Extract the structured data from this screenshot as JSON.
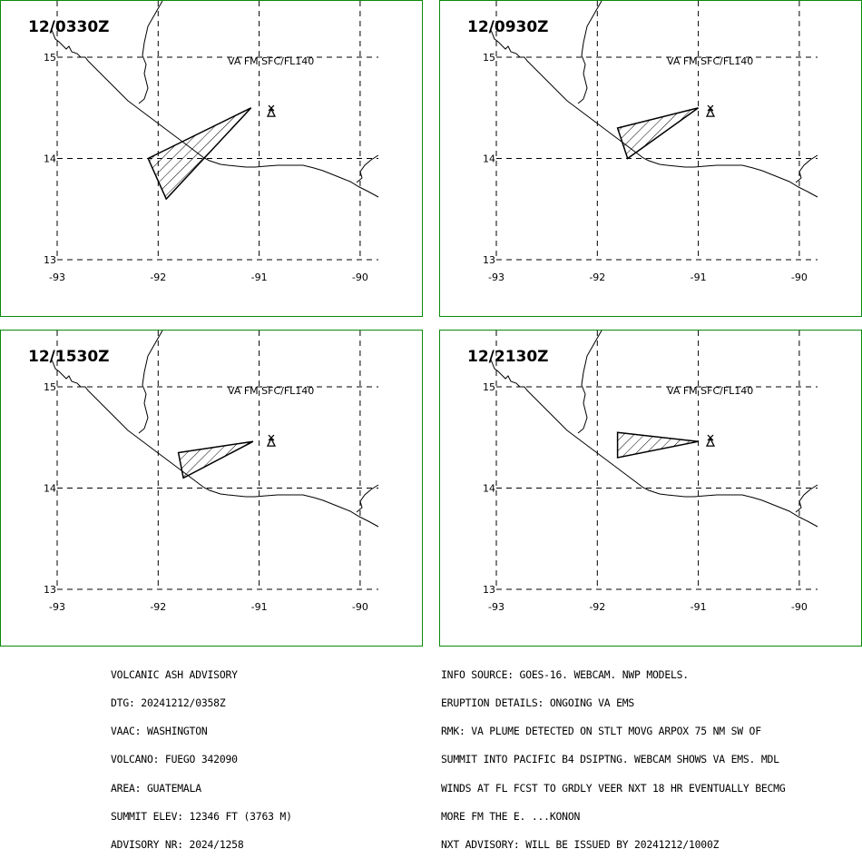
{
  "panels": [
    {
      "time": "12/0330Z",
      "level_text": "VA FM SFC/FL140"
    },
    {
      "time": "12/0930Z",
      "level_text": "VA FM SFC/FL140"
    },
    {
      "time": "12/1530Z",
      "level_text": "VA FM SFC/FL140"
    },
    {
      "time": "12/2130Z",
      "level_text": "VA FM SFC/FL140"
    }
  ],
  "map": {
    "lon_ticks": [
      "-93",
      "-92",
      "-91",
      "-90"
    ],
    "lat_ticks": [
      "15",
      "14",
      "13"
    ],
    "plumes_lonlat": [
      [
        [
          -92.1,
          14.0
        ],
        [
          -91.08,
          14.5
        ],
        [
          -91.92,
          13.6
        ]
      ],
      [
        [
          -91.8,
          14.3
        ],
        [
          -91.0,
          14.5
        ],
        [
          -91.7,
          14.0
        ]
      ],
      [
        [
          -91.8,
          14.35
        ],
        [
          -91.06,
          14.46
        ],
        [
          -91.75,
          14.1
        ]
      ],
      [
        [
          -91.8,
          14.55
        ],
        [
          -91.0,
          14.46
        ],
        [
          -91.8,
          14.3
        ]
      ]
    ],
    "volcano_lonlat": [
      -90.88,
      14.47
    ]
  },
  "colors": {
    "panel_border": "#0a8a0a",
    "lines": "#000000"
  },
  "advisory_left": [
    "VOLCANIC ASH ADVISORY",
    "DTG: 20241212/0358Z",
    "VAAC: WASHINGTON",
    "VOLCANO: FUEGO 342090",
    "AREA: GUATEMALA",
    "SUMMIT ELEV: 12346 FT (3763 M)",
    "ADVISORY NR: 2024/1258"
  ],
  "advisory_right": [
    "INFO SOURCE: GOES-16. WEBCAM. NWP MODELS.",
    "ERUPTION DETAILS: ONGOING VA EMS",
    "RMK: VA PLUME DETECTED ON STLT MOVG ARPOX 75 NM SW OF",
    "SUMMIT INTO PACIFIC B4 DSIPTNG. WEBCAM SHOWS VA EMS. MDL",
    "WINDS AT FL FCST TO GRDLY VEER NXT 18 HR EVENTUALLY BECMG",
    "MORE FM THE E. ...KONON",
    "NXT ADVISORY: WILL BE ISSUED BY 20241212/1000Z"
  ]
}
